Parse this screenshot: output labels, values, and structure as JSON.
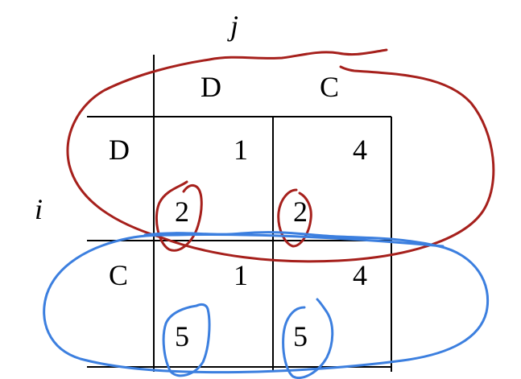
{
  "game": {
    "col_player": "j",
    "row_player": "i",
    "col_strategies": [
      "D",
      "C"
    ],
    "row_strategies": [
      "D",
      "C"
    ],
    "payoffs": {
      "DD": {
        "col": "1",
        "row": "2"
      },
      "DC": {
        "col": "4",
        "row": "2"
      },
      "CD": {
        "col": "1",
        "row": "5"
      },
      "CC": {
        "col": "4",
        "row": "5"
      }
    }
  },
  "annotations": {
    "upper_loop_color": "#a6201c",
    "lower_loop_color": "#3c7fdf"
  }
}
